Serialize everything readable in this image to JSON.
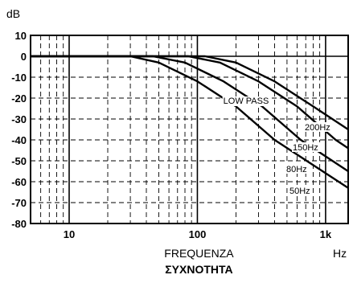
{
  "chart_data": {
    "type": "line",
    "x_scale": "log",
    "xlim": [
      5,
      1500
    ],
    "ylim": [
      -80,
      10
    ],
    "grid": true,
    "y_unit_label": "dB",
    "x_unit_label": "Hz",
    "xlabel_line1": "FREQUENZA",
    "xlabel_line2": "ΣΥΧΝΟΤΗΤΑ",
    "annotation": "LOW PASS",
    "y_ticks": [
      10,
      0,
      -10,
      -20,
      -30,
      -40,
      -50,
      -60,
      -70,
      -80
    ],
    "y_tick_labels": [
      "10",
      "0",
      "-10",
      "-20",
      "-30",
      "-40",
      "-50",
      "-60",
      "-70",
      "-80"
    ],
    "x_ticks": [
      10,
      100,
      1000
    ],
    "x_tick_labels": [
      "10",
      "100",
      "1k"
    ],
    "series": [
      {
        "name": "50Hz",
        "cutoff": 50,
        "slope_db_per_decade": -40,
        "x": [
          5,
          30,
          50,
          100,
          200,
          400,
          1500
        ],
        "y": [
          0,
          0,
          -3,
          -12,
          -24,
          -40,
          -63
        ]
      },
      {
        "name": "80Hz",
        "cutoff": 80,
        "slope_db_per_decade": -40,
        "x": [
          5,
          45,
          80,
          160,
          320,
          640,
          1500
        ],
        "y": [
          0,
          0,
          -3,
          -12,
          -24,
          -40,
          -55
        ]
      },
      {
        "name": "150Hz",
        "cutoff": 150,
        "slope_db_per_decade": -40,
        "x": [
          5,
          85,
          150,
          300,
          600,
          1200,
          1500
        ],
        "y": [
          0,
          0,
          -3,
          -12,
          -24,
          -40,
          -44
        ]
      },
      {
        "name": "200Hz",
        "cutoff": 200,
        "slope_db_per_decade": -40,
        "x": [
          5,
          115,
          200,
          400,
          800,
          1500
        ],
        "y": [
          0,
          0,
          -3,
          -12,
          -24,
          -35
        ]
      }
    ]
  }
}
